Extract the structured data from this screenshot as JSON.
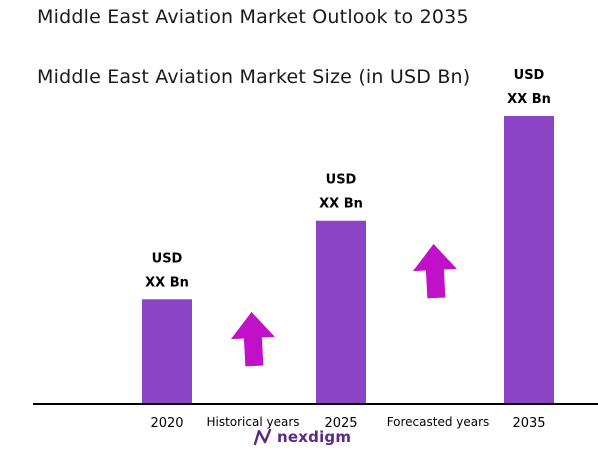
{
  "page": {
    "title": "Middle East Aviation Market Outlook to 2035"
  },
  "chart_data": {
    "type": "bar",
    "title": "Middle East Aviation Market Size (in USD Bn)",
    "categories": [
      "2020",
      "2025",
      "2035"
    ],
    "values": [
      2.0,
      3.5,
      5.5
    ],
    "value_labels": [
      [
        "USD",
        "XX Bn"
      ],
      [
        "USD",
        "XX Bn"
      ],
      [
        "USD",
        "XX Bn"
      ]
    ],
    "period_labels": [
      "Historical years",
      "Forecasted years"
    ],
    "ylim": [
      0,
      5.5
    ],
    "grid": false,
    "legend": "none",
    "colors": {
      "bar": "#8b44c4",
      "arrow": "#c010c8",
      "axis": "#000000"
    }
  },
  "logo": {
    "text": "nexdigm",
    "icon": "nexdigm-n-icon"
  }
}
